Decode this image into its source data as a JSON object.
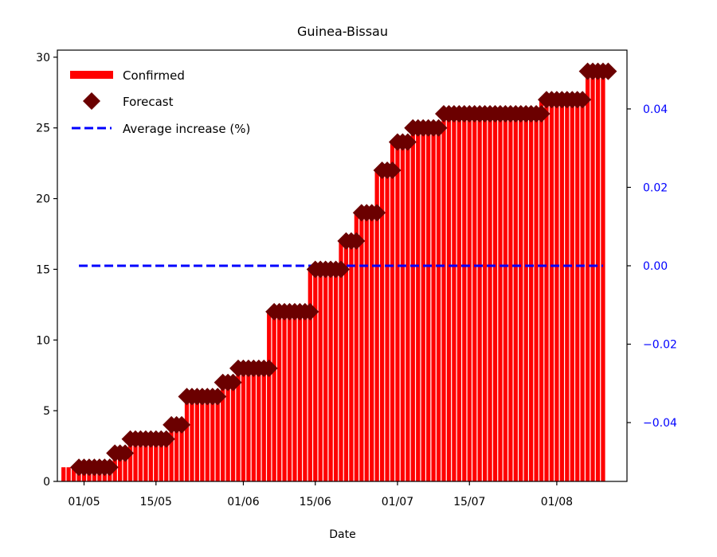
{
  "chart_data": {
    "type": "bar",
    "title": "Guinea-Bissau",
    "xlabel": "Date",
    "ylabel": "",
    "ylim": [
      0,
      30.5
    ],
    "y2lim": [
      -0.055,
      0.055
    ],
    "x_tick_labels": [
      "01/05",
      "15/05",
      "01/06",
      "15/06",
      "01/07",
      "15/07",
      "01/08"
    ],
    "x_tick_dates": [
      "2020-05-01",
      "2020-05-15",
      "2020-06-01",
      "2020-06-15",
      "2020-07-01",
      "2020-07-15",
      "2020-08-01"
    ],
    "y_ticks": [
      0,
      5,
      10,
      15,
      20,
      25,
      30
    ],
    "y2_tick_labels": [
      "0.04",
      "0.02",
      "0.00",
      "−0.02",
      "−0.04"
    ],
    "y2_ticks": [
      0.04,
      0.02,
      0.0,
      -0.02,
      -0.04
    ],
    "legend": {
      "position": "top-left",
      "entries": [
        "Confirmed",
        "Forecast",
        "Average increase (%)"
      ]
    },
    "grid": false,
    "colors": {
      "confirmed": "#ff0000",
      "forecast": "#6b0000",
      "average": "#0000ff",
      "right_axis": "#0000ff"
    },
    "confirmed_segments": [
      {
        "start": "2020-04-27",
        "end": "2020-04-29",
        "value": 1
      },
      {
        "start": "2020-04-30",
        "end": "2020-05-06",
        "value": 1
      },
      {
        "start": "2020-05-07",
        "end": "2020-05-09",
        "value": 2
      },
      {
        "start": "2020-05-10",
        "end": "2020-05-17",
        "value": 3
      },
      {
        "start": "2020-05-18",
        "end": "2020-05-20",
        "value": 4
      },
      {
        "start": "2020-05-21",
        "end": "2020-05-27",
        "value": 6
      },
      {
        "start": "2020-05-28",
        "end": "2020-05-30",
        "value": 7
      },
      {
        "start": "2020-05-31",
        "end": "2020-06-05",
        "value": 8
      },
      {
        "start": "2020-06-06",
        "end": "2020-06-13",
        "value": 12
      },
      {
        "start": "2020-06-14",
        "end": "2020-06-19",
        "value": 15
      },
      {
        "start": "2020-06-20",
        "end": "2020-06-22",
        "value": 17
      },
      {
        "start": "2020-06-23",
        "end": "2020-06-26",
        "value": 19
      },
      {
        "start": "2020-06-27",
        "end": "2020-06-29",
        "value": 22
      },
      {
        "start": "2020-06-30",
        "end": "2020-07-03",
        "value": 24
      },
      {
        "start": "2020-07-04",
        "end": "2020-07-09",
        "value": 25
      },
      {
        "start": "2020-07-10",
        "end": "2020-07-28",
        "value": 26
      },
      {
        "start": "2020-07-29",
        "end": "2020-08-06",
        "value": 27
      },
      {
        "start": "2020-08-07",
        "end": "2020-08-10",
        "value": 29
      }
    ],
    "forecast_segments": [
      {
        "start": "2020-04-30",
        "end": "2020-05-06",
        "value": 1
      },
      {
        "start": "2020-05-07",
        "end": "2020-05-09",
        "value": 2
      },
      {
        "start": "2020-05-10",
        "end": "2020-05-17",
        "value": 3
      },
      {
        "start": "2020-05-18",
        "end": "2020-05-20",
        "value": 4
      },
      {
        "start": "2020-05-21",
        "end": "2020-05-27",
        "value": 6
      },
      {
        "start": "2020-05-28",
        "end": "2020-05-30",
        "value": 7
      },
      {
        "start": "2020-05-31",
        "end": "2020-06-06",
        "value": 8
      },
      {
        "start": "2020-06-07",
        "end": "2020-06-14",
        "value": 12
      },
      {
        "start": "2020-06-15",
        "end": "2020-06-20",
        "value": 15
      },
      {
        "start": "2020-06-21",
        "end": "2020-06-23",
        "value": 17
      },
      {
        "start": "2020-06-24",
        "end": "2020-06-27",
        "value": 19
      },
      {
        "start": "2020-06-28",
        "end": "2020-06-30",
        "value": 22
      },
      {
        "start": "2020-07-01",
        "end": "2020-07-03",
        "value": 24
      },
      {
        "start": "2020-07-04",
        "end": "2020-07-09",
        "value": 25
      },
      {
        "start": "2020-07-10",
        "end": "2020-07-29",
        "value": 26
      },
      {
        "start": "2020-07-30",
        "end": "2020-08-06",
        "value": 27
      },
      {
        "start": "2020-08-07",
        "end": "2020-08-11",
        "value": 29
      }
    ],
    "average_increase": {
      "value": 0.0,
      "start": "2020-04-30",
      "end": "2020-08-10"
    }
  }
}
